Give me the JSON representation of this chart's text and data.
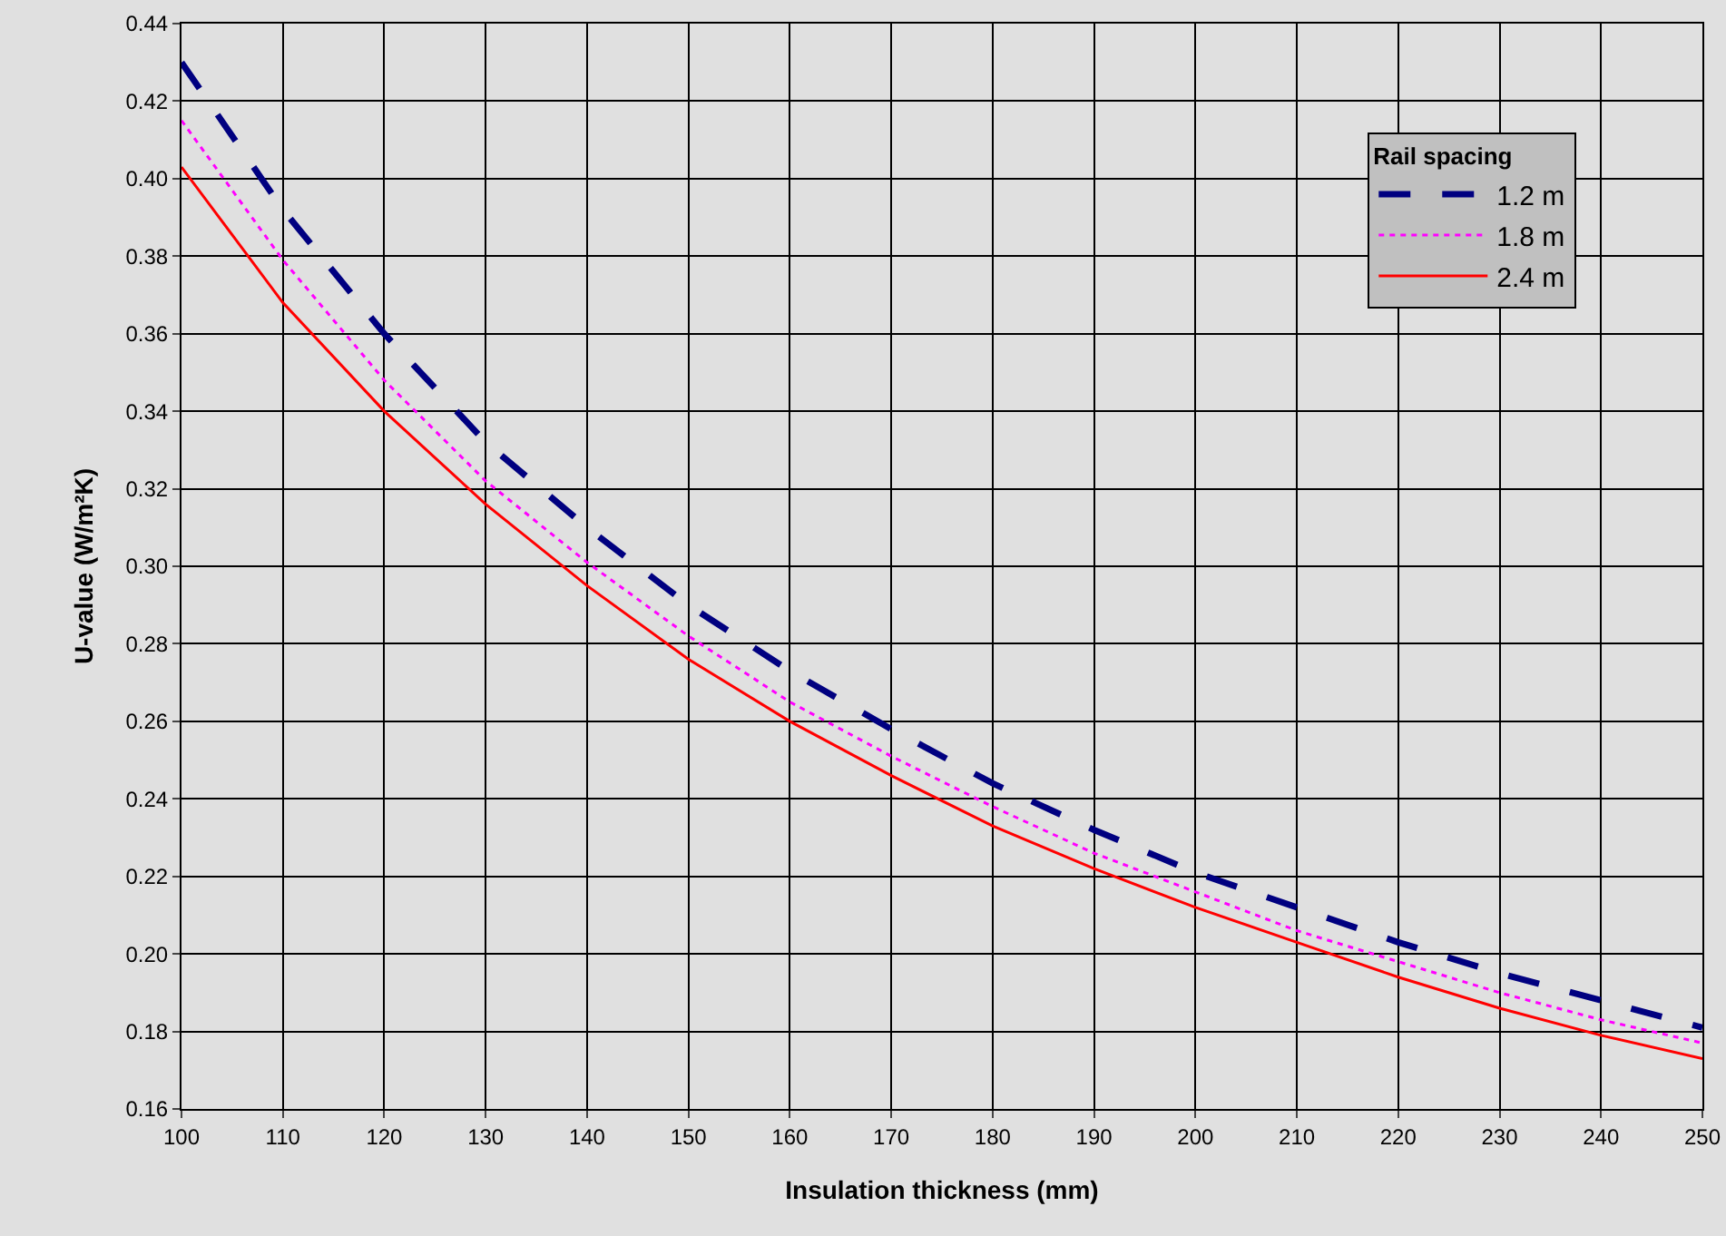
{
  "chart_data": {
    "type": "line",
    "xlabel": "Insulation thickness (mm)",
    "ylabel": "U-value (W/m²K)",
    "legend_title": "Rail spacing",
    "x": [
      100,
      110,
      120,
      130,
      140,
      150,
      160,
      170,
      180,
      190,
      200,
      210,
      220,
      230,
      240,
      250
    ],
    "series": [
      {
        "name": "1.2 m",
        "color": "#000080",
        "line_style": "dashed",
        "values": [
          0.43,
          0.392,
          0.36,
          0.332,
          0.31,
          0.29,
          0.273,
          0.258,
          0.244,
          0.232,
          0.221,
          0.212,
          0.203,
          0.195,
          0.188,
          0.181
        ]
      },
      {
        "name": "1.8 m",
        "color": "#ff00ff",
        "line_style": "dotted",
        "values": [
          0.415,
          0.379,
          0.348,
          0.322,
          0.301,
          0.282,
          0.265,
          0.251,
          0.238,
          0.226,
          0.216,
          0.206,
          0.198,
          0.19,
          0.183,
          0.177
        ]
      },
      {
        "name": "2.4 m",
        "color": "#ff0000",
        "line_style": "solid",
        "values": [
          0.403,
          0.368,
          0.34,
          0.316,
          0.295,
          0.276,
          0.26,
          0.246,
          0.233,
          0.222,
          0.212,
          0.203,
          0.194,
          0.186,
          0.179,
          0.173
        ]
      }
    ],
    "xlim": [
      100,
      250
    ],
    "xticks": [
      100,
      110,
      120,
      130,
      140,
      150,
      160,
      170,
      180,
      190,
      200,
      210,
      220,
      230,
      240,
      250
    ],
    "ylim": [
      0.16,
      0.44
    ],
    "yticks": [
      {
        "value": 0.16,
        "label": "0.16"
      },
      {
        "value": 0.18,
        "label": "0.18"
      },
      {
        "value": 0.2,
        "label": "0.20"
      },
      {
        "value": 0.22,
        "label": "0.22"
      },
      {
        "value": 0.24,
        "label": "0.24"
      },
      {
        "value": 0.26,
        "label": "0.26"
      },
      {
        "value": 0.28,
        "label": "0.28"
      },
      {
        "value": 0.3,
        "label": "0.30"
      },
      {
        "value": 0.32,
        "label": "0.32"
      },
      {
        "value": 0.34,
        "label": "0.34"
      },
      {
        "value": 0.36,
        "label": "0.36"
      },
      {
        "value": 0.38,
        "label": "0.38"
      },
      {
        "value": 0.4,
        "label": "0.40"
      },
      {
        "value": 0.42,
        "label": "0.42"
      },
      {
        "value": 0.44,
        "label": "0.44"
      }
    ],
    "grid": true,
    "legend": "top right",
    "marker": "none"
  }
}
